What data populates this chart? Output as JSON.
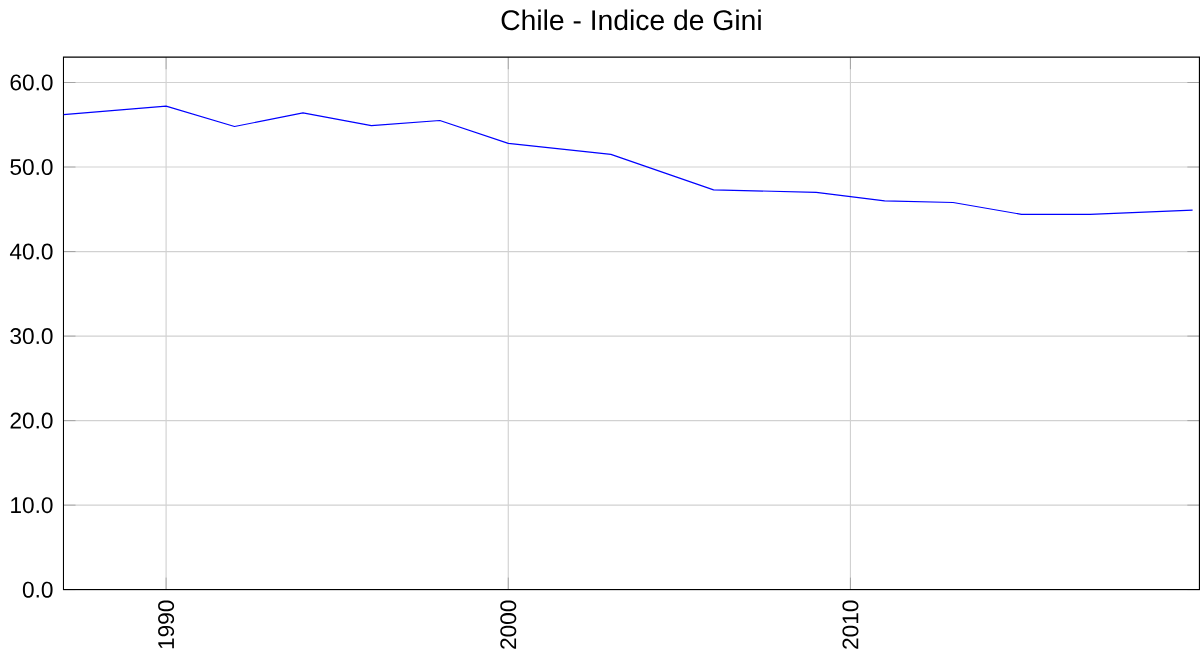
{
  "chart_data": {
    "type": "line",
    "title": "Chile - Indice de Gini",
    "x": [
      1987,
      1990,
      1992,
      1994,
      1996,
      1998,
      2000,
      2003,
      2006,
      2009,
      2011,
      2013,
      2015,
      2017,
      2020
    ],
    "series": [
      {
        "color": "#0000ff",
        "values": [
          56.2,
          57.2,
          54.8,
          56.4,
          54.9,
          55.5,
          52.8,
          51.5,
          47.3,
          47.0,
          46.0,
          45.8,
          44.4,
          44.4,
          44.9
        ]
      }
    ],
    "xlim": [
      1987,
      2020.2
    ],
    "ylim": [
      0,
      63
    ],
    "xticks": [
      1990,
      2000,
      2010
    ],
    "yticks": [
      {
        "value": 0,
        "label": "0.0"
      },
      {
        "value": 10,
        "label": "10.0"
      },
      {
        "value": 20,
        "label": "20.0"
      },
      {
        "value": 30,
        "label": "30.0"
      },
      {
        "value": 40,
        "label": "40.0"
      },
      {
        "value": 50,
        "label": "50.0"
      },
      {
        "value": 60,
        "label": "60.0"
      }
    ],
    "grid": true,
    "marker": "none",
    "line_style": "solid"
  }
}
